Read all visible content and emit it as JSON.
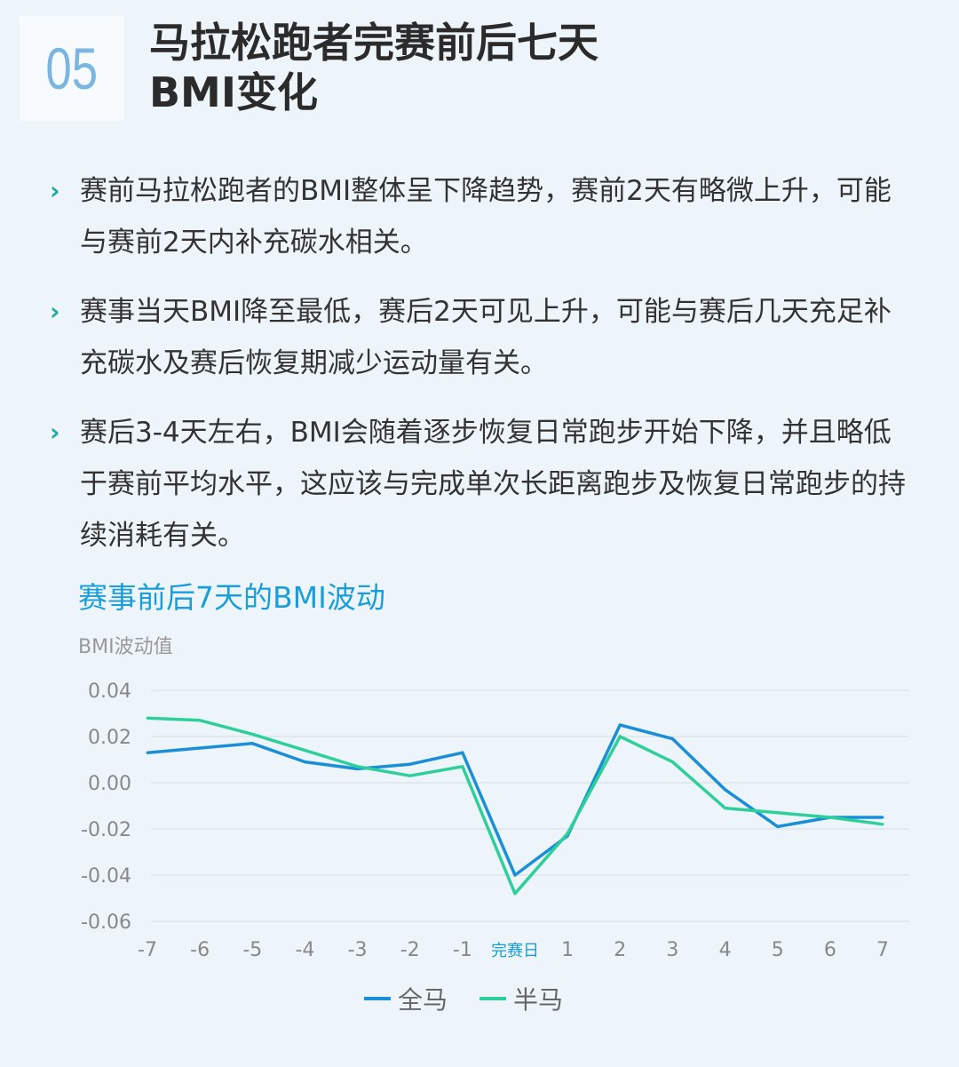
{
  "header": {
    "number": "05",
    "title_line1": "马拉松跑者完赛前后七天",
    "title_line2": "BMI变化"
  },
  "bullets": [
    "赛前马拉松跑者的BMI整体呈下降趋势，赛前2天有略微上升，可能与赛前2天内补充碳水相关。",
    "赛事当天BMI降至最低，赛后2天可见上升，可能与赛后几天充足补充碳水及赛后恢复期减少运动量有关。",
    "赛后3-4天左右，BMI会随着逐步恢复日常跑步开始下降，并且略低于赛前平均水平，这应该与完成单次长距离跑步及恢复日常跑步的持续消耗有关。"
  ],
  "chart_data": {
    "type": "line",
    "title": "赛事前后7天的BMI波动",
    "ylabel": "BMI波动值",
    "xlabel": "",
    "categories": [
      "-7",
      "-6",
      "-5",
      "-4",
      "-3",
      "-2",
      "-1",
      "完赛日",
      "1",
      "2",
      "3",
      "4",
      "5",
      "6",
      "7"
    ],
    "yticks": [
      "0.04",
      "0.02",
      "0.00",
      "-0.02",
      "-0.04",
      "-0.06"
    ],
    "ylim": [
      -0.06,
      0.04
    ],
    "grid": true,
    "legend": "bottom",
    "series": [
      {
        "name": "全马",
        "color": "#1a8fd8",
        "values": [
          0.013,
          0.015,
          0.017,
          0.009,
          0.006,
          0.008,
          0.013,
          -0.04,
          -0.023,
          0.025,
          0.019,
          -0.003,
          -0.019,
          -0.015,
          -0.015
        ]
      },
      {
        "name": "半马",
        "color": "#2ecf9a",
        "values": [
          0.028,
          0.027,
          0.021,
          0.014,
          0.007,
          0.003,
          0.007,
          -0.048,
          -0.022,
          0.02,
          0.009,
          -0.011,
          -0.013,
          -0.015,
          -0.018
        ]
      }
    ]
  }
}
